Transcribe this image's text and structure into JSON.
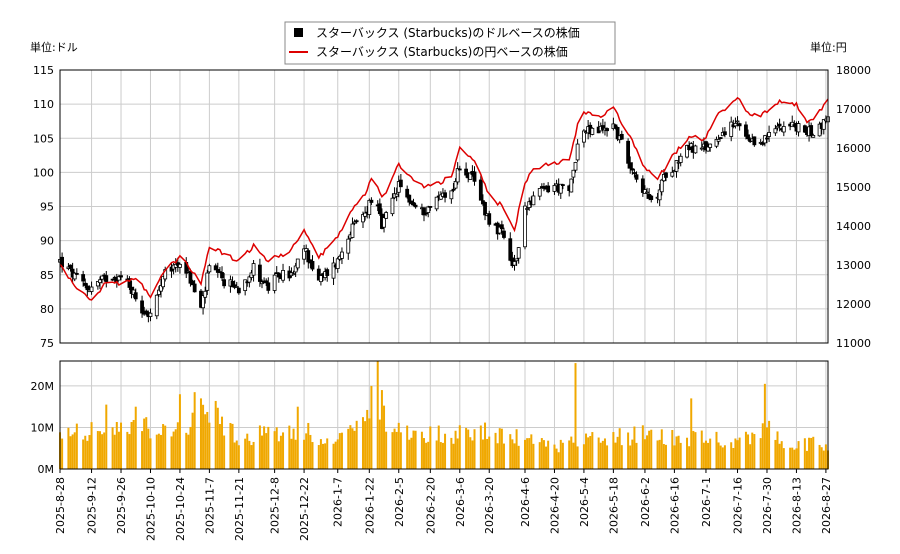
{
  "chart_data": {
    "type": "candlestick",
    "legend": [
      {
        "label": "スターバックス (Starbucks)のドルベースの株価",
        "marker": "square",
        "color": "#000000"
      },
      {
        "label": "スターバックス (Starbucks)の円ベースの株価",
        "marker": "line",
        "color": "#dd0000"
      }
    ],
    "legend_placement": "top-center",
    "grid": true,
    "price_axis_left": {
      "unit_label": "単位:ドル",
      "range": [
        75,
        115
      ],
      "ticks": [
        75,
        80,
        85,
        90,
        95,
        100,
        105,
        110,
        115
      ]
    },
    "price_axis_right": {
      "unit_label": "単位:円",
      "range": [
        11000,
        18000
      ],
      "ticks": [
        11000,
        12000,
        13000,
        14000,
        15000,
        16000,
        17000,
        18000
      ]
    },
    "volume_axis": {
      "range": [
        0,
        26000000
      ],
      "ticks": [
        {
          "value": 0,
          "label": "0M"
        },
        {
          "value": 10000000,
          "label": "10M"
        },
        {
          "value": 20000000,
          "label": "20M"
        }
      ]
    },
    "x_range": [
      "2025-08-28",
      "2026-08-28"
    ],
    "x_tick_labels": [
      "2025-8-28",
      "2025-9-12",
      "2025-9-26",
      "2025-10-10",
      "2025-10-24",
      "2025-11-7",
      "2025-11-21",
      "2025-12-8",
      "2025-12-22",
      "2026-1-7",
      "2026-1-22",
      "2026-2-5",
      "2026-2-20",
      "2026-3-6",
      "2026-3-20",
      "2026-4-6",
      "2026-4-20",
      "2026-5-4",
      "2026-5-18",
      "2026-6-2",
      "2026-6-16",
      "2026-7-1",
      "2026-7-16",
      "2026-7-30",
      "2026-8-13",
      "2026-8-27"
    ],
    "usd_close_keypoints": [
      [
        "2025-08-28",
        87
      ],
      [
        "2025-09-03",
        85
      ],
      [
        "2025-09-10",
        83
      ],
      [
        "2025-09-16",
        84
      ],
      [
        "2025-09-22",
        85
      ],
      [
        "2025-09-29",
        84
      ],
      [
        "2025-10-06",
        80
      ],
      [
        "2025-10-10",
        79
      ],
      [
        "2025-10-17",
        85
      ],
      [
        "2025-10-24",
        87
      ],
      [
        "2025-10-28",
        85
      ],
      [
        "2025-11-03",
        80
      ],
      [
        "2025-11-07",
        86
      ],
      [
        "2025-11-14",
        84
      ],
      [
        "2025-11-21",
        83
      ],
      [
        "2025-11-28",
        86
      ],
      [
        "2025-12-05",
        83
      ],
      [
        "2025-12-10",
        85
      ],
      [
        "2025-12-17",
        85
      ],
      [
        "2025-12-22",
        89
      ],
      [
        "2025-12-29",
        84
      ],
      [
        "2026-01-07",
        87
      ],
      [
        "2026-01-12",
        91
      ],
      [
        "2026-01-20",
        94
      ],
      [
        "2026-01-24",
        97
      ],
      [
        "2026-01-28",
        92
      ],
      [
        "2026-02-01",
        95
      ],
      [
        "2026-02-05",
        98
      ],
      [
        "2026-02-10",
        96
      ],
      [
        "2026-02-15",
        94
      ],
      [
        "2026-02-20",
        95
      ],
      [
        "2026-02-26",
        97
      ],
      [
        "2026-03-02",
        97
      ],
      [
        "2026-03-06",
        101
      ],
      [
        "2026-03-12",
        99
      ],
      [
        "2026-03-16",
        96
      ],
      [
        "2026-03-20",
        93
      ],
      [
        "2026-03-26",
        91
      ],
      [
        "2026-03-31",
        86
      ],
      [
        "2026-04-04",
        89
      ],
      [
        "2026-04-06",
        95
      ],
      [
        "2026-04-12",
        97
      ],
      [
        "2026-04-20",
        98
      ],
      [
        "2026-04-27",
        97
      ],
      [
        "2026-05-01",
        104
      ],
      [
        "2026-05-04",
        106
      ],
      [
        "2026-05-10",
        106
      ],
      [
        "2026-05-18",
        107
      ],
      [
        "2026-05-25",
        102
      ],
      [
        "2026-06-02",
        97
      ],
      [
        "2026-06-06",
        95
      ],
      [
        "2026-06-12",
        100
      ],
      [
        "2026-06-16",
        101
      ],
      [
        "2026-06-22",
        104
      ],
      [
        "2026-06-28",
        103
      ],
      [
        "2026-07-03",
        104
      ],
      [
        "2026-07-09",
        106
      ],
      [
        "2026-07-16",
        107
      ],
      [
        "2026-07-22",
        104
      ],
      [
        "2026-07-30",
        105
      ],
      [
        "2026-08-05",
        107
      ],
      [
        "2026-08-10",
        107
      ],
      [
        "2026-08-17",
        106
      ],
      [
        "2026-08-22",
        106
      ],
      [
        "2026-08-28",
        108
      ]
    ],
    "jpy_close_keypoints": [
      [
        "2025-08-28",
        13000
      ],
      [
        "2025-09-05",
        12400
      ],
      [
        "2025-09-12",
        12100
      ],
      [
        "2025-09-20",
        12600
      ],
      [
        "2025-09-26",
        12500
      ],
      [
        "2025-10-03",
        12700
      ],
      [
        "2025-10-10",
        12200
      ],
      [
        "2025-10-17",
        12900
      ],
      [
        "2025-10-24",
        13200
      ],
      [
        "2025-10-28",
        13000
      ],
      [
        "2025-11-03",
        12500
      ],
      [
        "2025-11-07",
        13500
      ],
      [
        "2025-11-14",
        13300
      ],
      [
        "2025-11-21",
        13100
      ],
      [
        "2025-11-28",
        13500
      ],
      [
        "2025-12-05",
        13100
      ],
      [
        "2025-12-08",
        13200
      ],
      [
        "2025-12-15",
        13300
      ],
      [
        "2025-12-22",
        13900
      ],
      [
        "2025-12-29",
        13200
      ],
      [
        "2026-01-07",
        13700
      ],
      [
        "2026-01-14",
        14400
      ],
      [
        "2026-01-20",
        14800
      ],
      [
        "2026-01-24",
        15400
      ],
      [
        "2026-01-28",
        14700
      ],
      [
        "2026-02-01",
        15100
      ],
      [
        "2026-02-05",
        15600
      ],
      [
        "2026-02-12",
        15200
      ],
      [
        "2026-02-18",
        15000
      ],
      [
        "2026-02-24",
        15100
      ],
      [
        "2026-03-02",
        15300
      ],
      [
        "2026-03-06",
        16000
      ],
      [
        "2026-03-13",
        15700
      ],
      [
        "2026-03-20",
        14800
      ],
      [
        "2026-03-26",
        14500
      ],
      [
        "2026-04-01",
        13900
      ],
      [
        "2026-04-06",
        15100
      ],
      [
        "2026-04-10",
        15500
      ],
      [
        "2026-04-20",
        15600
      ],
      [
        "2026-04-27",
        15700
      ],
      [
        "2026-05-01",
        16600
      ],
      [
        "2026-05-04",
        16900
      ],
      [
        "2026-05-12",
        16800
      ],
      [
        "2026-05-18",
        17000
      ],
      [
        "2026-05-25",
        16400
      ],
      [
        "2026-06-02",
        15500
      ],
      [
        "2026-06-08",
        15200
      ],
      [
        "2026-06-14",
        15700
      ],
      [
        "2026-06-18",
        16000
      ],
      [
        "2026-06-24",
        16300
      ],
      [
        "2026-06-30",
        16200
      ],
      [
        "2026-07-06",
        16800
      ],
      [
        "2026-07-13",
        17100
      ],
      [
        "2026-07-16",
        17300
      ],
      [
        "2026-07-22",
        16800
      ],
      [
        "2026-07-30",
        16900
      ],
      [
        "2026-08-05",
        17200
      ],
      [
        "2026-08-13",
        17100
      ],
      [
        "2026-08-18",
        16700
      ],
      [
        "2026-08-22",
        16800
      ],
      [
        "2026-08-28",
        17200
      ]
    ],
    "volume_keypoints": [
      [
        "2025-08-28",
        8000000
      ],
      [
        "2025-09-10",
        9500000
      ],
      [
        "2025-09-22",
        8500000
      ],
      [
        "2025-10-06",
        10000000
      ],
      [
        "2025-10-20",
        8000000
      ],
      [
        "2025-10-28",
        11000000
      ],
      [
        "2025-11-07",
        14000000
      ],
      [
        "2025-11-14",
        11000000
      ],
      [
        "2025-11-21",
        7500000
      ],
      [
        "2025-12-05",
        8500000
      ],
      [
        "2025-12-15",
        9500000
      ],
      [
        "2025-12-22",
        10000000
      ],
      [
        "2025-12-31",
        5500000
      ],
      [
        "2026-01-07",
        7500000
      ],
      [
        "2026-01-15",
        8500000
      ],
      [
        "2026-01-24",
        14000000
      ],
      [
        "2026-02-05",
        9000000
      ],
      [
        "2026-02-20",
        8500000
      ],
      [
        "2026-03-06",
        8500000
      ],
      [
        "2026-03-20",
        9000000
      ],
      [
        "2026-04-06",
        7000000
      ],
      [
        "2026-04-20",
        5500000
      ],
      [
        "2026-04-28",
        6500000
      ],
      [
        "2026-05-04",
        8000000
      ],
      [
        "2026-05-18",
        7500000
      ],
      [
        "2026-06-02",
        8500000
      ],
      [
        "2026-06-16",
        8000000
      ],
      [
        "2026-07-01",
        7000000
      ],
      [
        "2026-07-16",
        7000000
      ],
      [
        "2026-07-26",
        7500000
      ],
      [
        "2026-07-30",
        11000000
      ],
      [
        "2026-08-06",
        6000000
      ],
      [
        "2026-08-13",
        5500000
      ],
      [
        "2026-08-20",
        6500000
      ],
      [
        "2026-08-28",
        6000000
      ]
    ],
    "volume_spikes": [
      [
        "2025-09-19",
        15500000
      ],
      [
        "2025-10-03",
        15000000
      ],
      [
        "2025-10-24",
        18000000
      ],
      [
        "2025-10-31",
        18500000
      ],
      [
        "2025-11-03",
        17000000
      ],
      [
        "2025-12-19",
        15000000
      ],
      [
        "2026-01-23",
        20000000
      ],
      [
        "2026-01-26",
        26000000
      ],
      [
        "2026-01-28",
        19000000
      ],
      [
        "2026-04-30",
        25500000
      ],
      [
        "2026-06-24",
        17000000
      ],
      [
        "2026-07-29",
        20500000
      ]
    ]
  }
}
